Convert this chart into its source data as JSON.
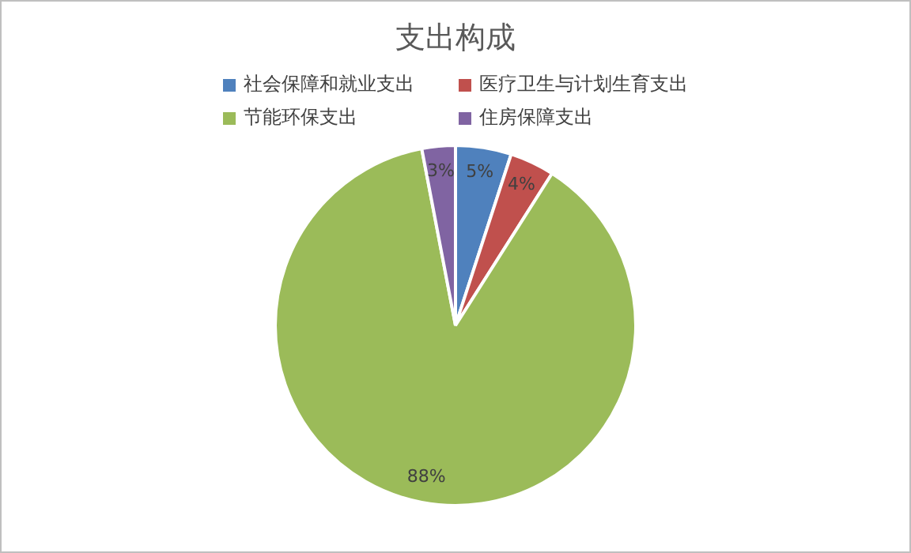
{
  "chart_data": {
    "type": "pie",
    "title": "支出构成",
    "categories": [
      "社会保障和就业支出",
      "医疗卫生与计划生育支出",
      "节能环保支出",
      "住房保障支出"
    ],
    "values": [
      5,
      4,
      88,
      3
    ],
    "colors": [
      "#4f81bd",
      "#c0504d",
      "#9bbb59",
      "#8064a2"
    ],
    "value_labels": [
      "5%",
      "4%",
      "88%",
      "3%"
    ],
    "legend": "top"
  }
}
